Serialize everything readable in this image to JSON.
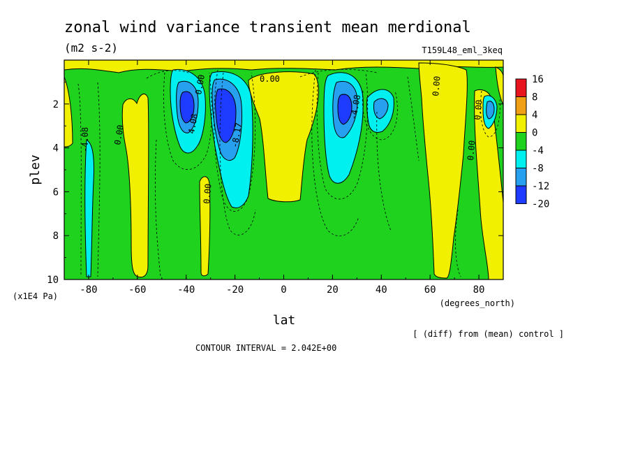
{
  "chart_data": {
    "type": "heatmap",
    "title": "zonal wind variance transient mean merdional",
    "units": "(m2 s-2)",
    "experiment": "T159L48_eml_3keq",
    "xlabel": "lat",
    "xunit": "(degrees_north)",
    "ylabel": "plev",
    "yunit": "(x1E4 Pa)",
    "xlim": [
      -90,
      90
    ],
    "ylim": [
      10,
      0
    ],
    "x_ticks": [
      -80,
      -60,
      -40,
      -20,
      0,
      20,
      40,
      60,
      80
    ],
    "y_ticks": [
      2,
      4,
      6,
      8,
      10
    ],
    "note": "[ (diff) from (mean) control ]",
    "contour_interval": "CONTOUR INTERVAL = 2.042E+00",
    "legend": {
      "levels": [
        "16",
        "8",
        "4",
        "0",
        "-4",
        "-8",
        "-12",
        "-20"
      ],
      "colors": [
        "#e8141e",
        "#f0a014",
        "#f0f000",
        "#1ed21e",
        "#00f0f0",
        "#28a0f0",
        "#1e3cff"
      ]
    },
    "contour_labels": [
      "0.00",
      "0.00",
      "-4.08",
      "4.08",
      "-8.17",
      "-4.08",
      "0.00",
      "0.00",
      "0.00",
      "0.00",
      "0.00"
    ],
    "features": [
      {
        "lat": -78,
        "plev": 4.5,
        "value": -6
      },
      {
        "lat": -42,
        "plev": 2.3,
        "value": -14
      },
      {
        "lat": -25,
        "plev": 3.0,
        "value": -20
      },
      {
        "lat": 25,
        "plev": 2.8,
        "value": -13
      },
      {
        "lat": 40,
        "plev": 2.2,
        "value": -8
      },
      {
        "lat": 83,
        "plev": 2.2,
        "value": -8
      },
      {
        "lat": 0,
        "plev": 3.0,
        "value": 2
      },
      {
        "lat": -60,
        "plev": 5.5,
        "value": 1.5
      },
      {
        "lat": 78,
        "plev": 6.0,
        "value": 1.5
      }
    ]
  }
}
